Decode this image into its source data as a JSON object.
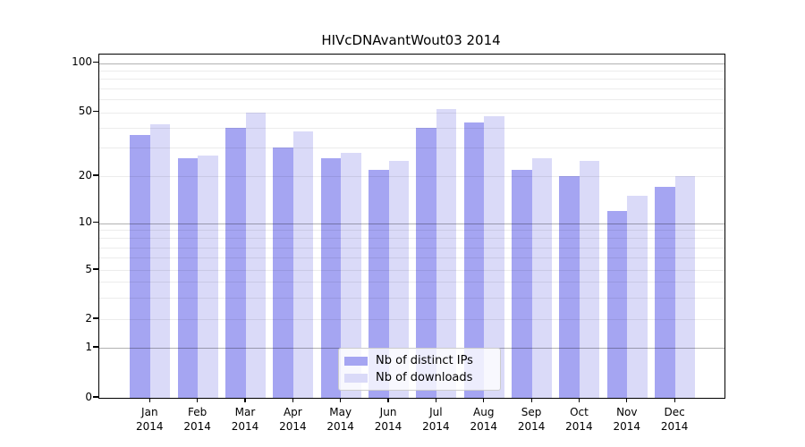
{
  "title": "HIVcDNAvantWout03 2014",
  "chart_data": {
    "type": "bar",
    "title": "HIVcDNAvantWout03 2014",
    "categories": [
      "Jan 2014",
      "Feb 2014",
      "Mar 2014",
      "Apr 2014",
      "May 2014",
      "Jun 2014",
      "Jul 2014",
      "Aug 2014",
      "Sep 2014",
      "Oct 2014",
      "Nov 2014",
      "Dec 2014"
    ],
    "series": [
      {
        "name": "Nb of distinct IPs",
        "color": "#a5a5f2",
        "values": [
          36,
          26,
          40,
          30,
          26,
          22,
          40,
          43,
          22,
          20,
          12,
          17
        ]
      },
      {
        "name": "Nb of downloads",
        "color": "#dadaf8",
        "values": [
          42,
          27,
          50,
          38,
          28,
          25,
          52,
          47,
          26,
          25,
          15,
          20
        ]
      }
    ],
    "xlabel": "",
    "ylabel": "",
    "yscale": "symlog",
    "ylim": [
      0,
      113
    ],
    "ytick_values": [
      0,
      1,
      2,
      5,
      10,
      20,
      50,
      100
    ],
    "ytick_labels": [
      "0",
      "1",
      "2",
      "5",
      "10",
      "20",
      "50",
      "100"
    ],
    "minor_grid_values": [
      2,
      3,
      4,
      5,
      6,
      7,
      8,
      9,
      20,
      30,
      40,
      50,
      60,
      70,
      80,
      90
    ],
    "major_grid_values": [
      1,
      10,
      100
    ],
    "grid": "horizontal log minor+major",
    "legend_position": "lower center"
  },
  "legend": {
    "items": [
      {
        "label": "Nb of distinct IPs",
        "color": "#a5a5f2"
      },
      {
        "label": "Nb of downloads",
        "color": "#dadaf8"
      }
    ]
  },
  "colors": {
    "bar_distinct_ips": "#a5a5f2",
    "bar_downloads": "#dadaf8",
    "grid_major": "#b3b3b3",
    "grid_minor": "#ececec",
    "axis": "#000000",
    "background": "#ffffff"
  }
}
